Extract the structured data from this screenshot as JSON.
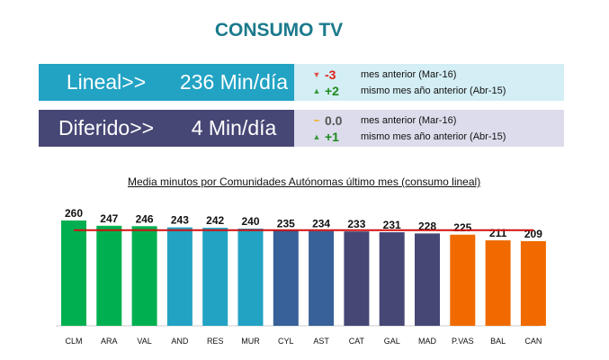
{
  "title": "CONSUMO TV",
  "lineal": {
    "label": "Lineal>>",
    "value": "236 Min/día",
    "color": "#22a3c4",
    "panel": "#d3eef4",
    "rows": [
      {
        "icon": "triangle-down-icon",
        "glyph": "▼",
        "iconColor": "#e0504a",
        "delta": "-3",
        "deltaColor": "#e0201c",
        "text": "mes anterior (Mar-16)"
      },
      {
        "icon": "triangle-up-icon",
        "glyph": "▲",
        "iconColor": "#3a9a3a",
        "delta": "+2",
        "deltaColor": "#1d8a1d",
        "text": "mismo mes año anterior (Abr-15)"
      }
    ]
  },
  "diferido": {
    "label": "Diferido>>",
    "value": "4 Min/día",
    "color": "#464775",
    "panel": "#dcdcec",
    "rows": [
      {
        "icon": "dash-icon",
        "glyph": "━",
        "iconColor": "#f0b020",
        "delta": "0.0",
        "deltaColor": "#555555",
        "text": "mes anterior (Mar-16)"
      },
      {
        "icon": "triangle-up-icon",
        "glyph": "▲",
        "iconColor": "#3a9a3a",
        "delta": "+1",
        "deltaColor": "#1d8a1d",
        "text": "mismo mes año anterior (Abr-15)"
      }
    ]
  },
  "chart_data": {
    "type": "bar",
    "title": "Media minutos por Comunidades Autónomas último mes (consumo lineal)",
    "categories": [
      "CLM",
      "ARA",
      "VAL",
      "AND",
      "RES",
      "MUR",
      "CYL",
      "AST",
      "CAT",
      "GAL",
      "MAD",
      "P.VAS",
      "BAL",
      "CAN"
    ],
    "values": [
      260,
      247,
      246,
      243,
      242,
      240,
      235,
      234,
      233,
      231,
      228,
      225,
      211,
      209
    ],
    "colors": [
      "#00b050",
      "#00b050",
      "#00b050",
      "#22a3c4",
      "#22a3c4",
      "#22a3c4",
      "#386099",
      "#386099",
      "#464775",
      "#464775",
      "#464775",
      "#f06a00",
      "#f06a00",
      "#f06a00"
    ],
    "reference_line": {
      "value": 236,
      "color": "#d01010"
    },
    "ylim": [
      0,
      260
    ],
    "grid": false
  }
}
